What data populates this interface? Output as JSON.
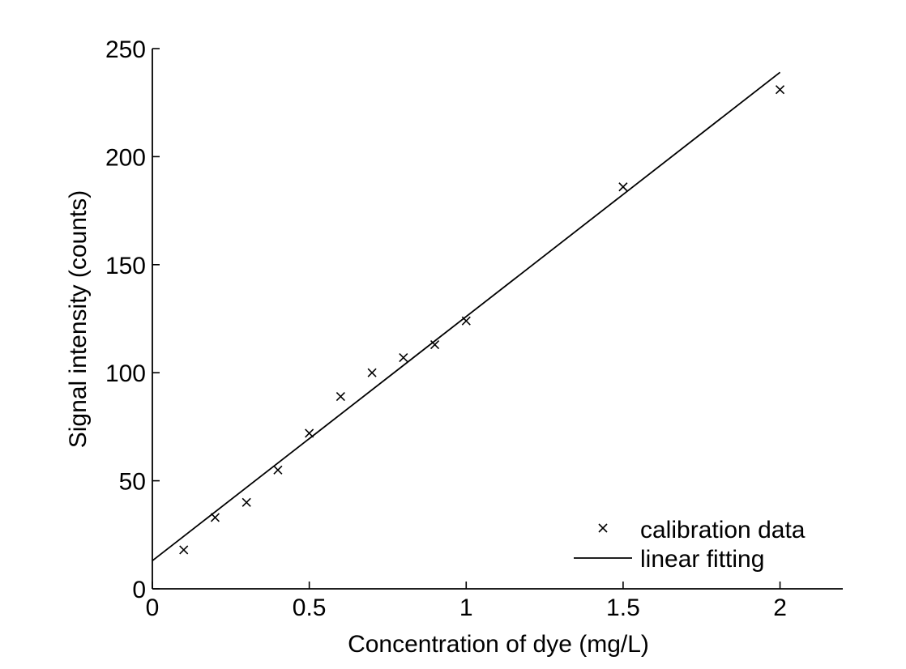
{
  "chart_data": {
    "type": "scatter",
    "title": "",
    "xlabel": "Concentration of dye (mg/L)",
    "ylabel": "Signal intensity (counts)",
    "xlim": [
      0,
      2.2
    ],
    "ylim": [
      0,
      250
    ],
    "x_ticks": [
      0,
      0.5,
      1,
      1.5,
      2
    ],
    "x_tick_labels": [
      "0",
      "0.5",
      "1",
      "1.5",
      "2"
    ],
    "y_ticks": [
      0,
      50,
      100,
      150,
      200,
      250
    ],
    "y_tick_labels": [
      "0",
      "50",
      "100",
      "150",
      "200",
      "250"
    ],
    "grid": false,
    "legend_position": "bottom-right",
    "series": [
      {
        "name": "calibration data",
        "kind": "scatter",
        "marker": "x",
        "color": "#000000",
        "x": [
          0.1,
          0.2,
          0.3,
          0.4,
          0.5,
          0.6,
          0.7,
          0.8,
          0.9,
          1.0,
          1.5,
          2.0
        ],
        "y": [
          18,
          33,
          40,
          55,
          72,
          89,
          100,
          107,
          113,
          124,
          186,
          231
        ]
      },
      {
        "name": "linear fitting",
        "kind": "line",
        "color": "#000000",
        "x": [
          0,
          2.0
        ],
        "y": [
          13,
          239
        ]
      }
    ]
  }
}
